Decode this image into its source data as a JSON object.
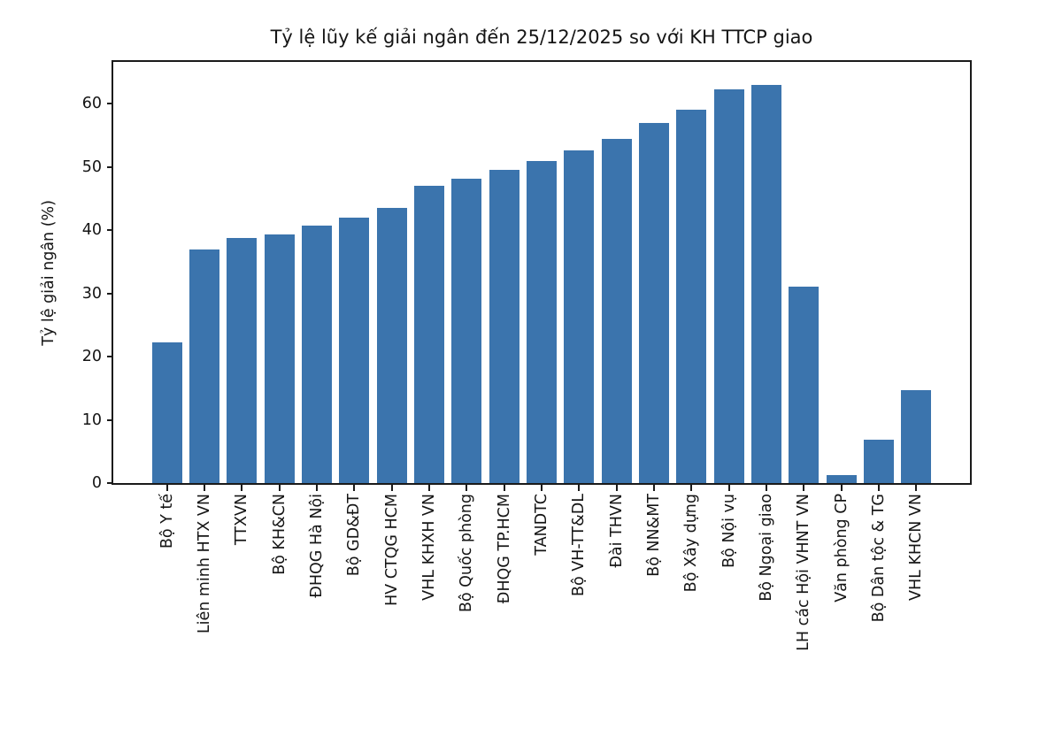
{
  "chart_data": {
    "type": "bar",
    "title": "Tỷ lệ lũy kế giải ngân đến 25/12/2025 so với KH TTCP giao",
    "xlabel": "",
    "ylabel": "Tỷ lệ giải ngân (%)",
    "categories": [
      "Bộ Y tế",
      "Liên minh HTX VN",
      "TTXVN",
      "Bộ KH&CN",
      "ĐHQG Hà Nội",
      "Bộ GD&ĐT",
      "HV CTQG HCM",
      "VHL KHXH VN",
      "Bộ Quốc phòng",
      "ĐHQG TP.HCM",
      "TANDTC",
      "Bộ VH-TT&DL",
      "Đài THVN",
      "Bộ NN&MT",
      "Bộ Xây dựng",
      "Bộ Nội vụ",
      "Bộ Ngoại giao",
      "LH các Hội VHNT VN",
      "Văn phòng CP",
      "Bộ Dân tộc & TG",
      "VHL KHCN VN"
    ],
    "values": [
      22.3,
      37.0,
      38.8,
      39.3,
      40.7,
      42.0,
      43.5,
      47.0,
      48.1,
      49.5,
      51.0,
      52.6,
      54.4,
      56.9,
      59.0,
      62.3,
      63.0,
      31.0,
      1.2,
      6.9,
      14.7
    ],
    "yticks": [
      0,
      10,
      20,
      30,
      40,
      50,
      60
    ],
    "ylim": [
      0,
      66.6
    ],
    "bar_color": "#3b74ad",
    "grid": false,
    "legend_position": "none"
  }
}
